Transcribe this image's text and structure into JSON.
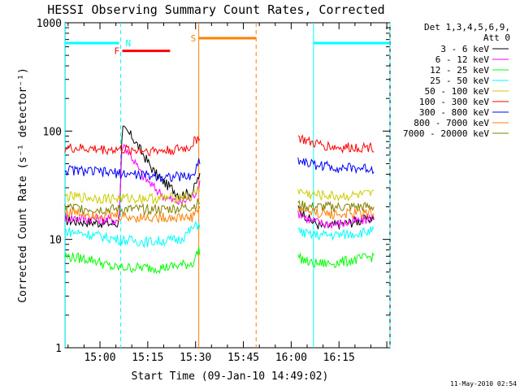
{
  "chart_data": {
    "type": "line",
    "title": "HESSI Observing Summary Count Rates, Corrected",
    "xlabel": "Start Time (09-Jan-10 14:49:02)",
    "ylabel": "Corrected Count Rate (s⁻¹ detector⁻¹)",
    "yscale": "log",
    "ylim": [
      1,
      1000
    ],
    "yticks": [
      {
        "v": 1,
        "label": "1"
      },
      {
        "v": 10,
        "label": "10"
      },
      {
        "v": 100,
        "label": "100"
      },
      {
        "v": 1000,
        "label": "1000"
      }
    ],
    "xlim": [
      "14:49:02",
      "16:31:00"
    ],
    "xticks": [
      "15:00",
      "15:15",
      "15:30",
      "15:45",
      "16:00",
      "16:15"
    ],
    "legend_header": [
      "Det 1,3,4,5,6,9,",
      "Att 0"
    ],
    "legend_placement": "right",
    "data_gap": [
      "15:31:30",
      "16:02:00"
    ],
    "series": [
      {
        "name": "3 - 6 keV",
        "color": "#000000",
        "points": [
          [
            "14:49",
            15
          ],
          [
            "15:04",
            14
          ],
          [
            "15:06",
            14
          ],
          [
            "15:07",
            105
          ],
          [
            "15:10",
            90
          ],
          [
            "15:13",
            65
          ],
          [
            "15:17",
            42
          ],
          [
            "15:21",
            32
          ],
          [
            "15:25",
            26
          ],
          [
            "15:29",
            27
          ],
          [
            "15:31",
            38
          ],
          [
            "16:02",
            20
          ],
          [
            "16:06",
            15
          ],
          [
            "16:10",
            13
          ],
          [
            "16:16",
            14
          ],
          [
            "16:22",
            15
          ],
          [
            "16:26",
            16
          ]
        ]
      },
      {
        "name": "6 - 12 keV",
        "color": "#ff00ff",
        "points": [
          [
            "14:49",
            16
          ],
          [
            "15:06",
            15
          ],
          [
            "15:07",
            78
          ],
          [
            "15:10",
            58
          ],
          [
            "15:13",
            40
          ],
          [
            "15:17",
            30
          ],
          [
            "15:21",
            24
          ],
          [
            "15:25",
            22
          ],
          [
            "15:29",
            24
          ],
          [
            "15:31",
            32
          ],
          [
            "16:02",
            18
          ],
          [
            "16:06",
            15
          ],
          [
            "16:10",
            14
          ],
          [
            "16:16",
            14
          ],
          [
            "16:22",
            15
          ],
          [
            "16:26",
            16
          ]
        ]
      },
      {
        "name": "12 - 25 keV",
        "color": "#00ff00",
        "points": [
          [
            "14:49",
            7
          ],
          [
            "14:58",
            6.5
          ],
          [
            "15:04",
            5.5
          ],
          [
            "15:10",
            5.5
          ],
          [
            "15:20",
            5.5
          ],
          [
            "15:29",
            6
          ],
          [
            "15:31",
            8
          ],
          [
            "16:02",
            7
          ],
          [
            "16:06",
            6
          ],
          [
            "16:12",
            6
          ],
          [
            "16:20",
            6.5
          ],
          [
            "16:26",
            7
          ]
        ]
      },
      {
        "name": "25 - 50 keV",
        "color": "#00ffff",
        "points": [
          [
            "14:49",
            12
          ],
          [
            "14:58",
            11
          ],
          [
            "15:06",
            10
          ],
          [
            "15:15",
            9.5
          ],
          [
            "15:25",
            10
          ],
          [
            "15:31",
            14
          ],
          [
            "16:02",
            12
          ],
          [
            "16:06",
            11
          ],
          [
            "16:15",
            11
          ],
          [
            "16:26",
            12
          ]
        ]
      },
      {
        "name": "50 - 100 keV",
        "color": "#cccc00",
        "points": [
          [
            "14:49",
            25
          ],
          [
            "15:00",
            24
          ],
          [
            "15:10",
            24
          ],
          [
            "15:20",
            24
          ],
          [
            "15:29",
            25
          ],
          [
            "15:31",
            30
          ],
          [
            "16:02",
            28
          ],
          [
            "16:06",
            26
          ],
          [
            "16:15",
            25
          ],
          [
            "16:26",
            26
          ]
        ]
      },
      {
        "name": "100 - 300 keV",
        "color": "#ff0000",
        "points": [
          [
            "14:49",
            70
          ],
          [
            "15:00",
            68
          ],
          [
            "15:10",
            67
          ],
          [
            "15:20",
            66
          ],
          [
            "15:28",
            70
          ],
          [
            "15:31",
            90
          ],
          [
            "16:02",
            88
          ],
          [
            "16:06",
            78
          ],
          [
            "16:15",
            70
          ],
          [
            "16:26",
            72
          ]
        ]
      },
      {
        "name": "300 - 800 keV",
        "color": "#0000ff",
        "points": [
          [
            "14:49",
            44
          ],
          [
            "15:00",
            42
          ],
          [
            "15:10",
            40
          ],
          [
            "15:20",
            38
          ],
          [
            "15:29",
            38
          ],
          [
            "15:31",
            52
          ],
          [
            "16:02",
            55
          ],
          [
            "16:06",
            50
          ],
          [
            "16:15",
            46
          ],
          [
            "16:26",
            45
          ]
        ]
      },
      {
        "name": "800 - 7000 keV",
        "color": "#ff8000",
        "points": [
          [
            "14:49",
            18
          ],
          [
            "15:00",
            17
          ],
          [
            "15:10",
            16
          ],
          [
            "15:20",
            16
          ],
          [
            "15:29",
            16
          ],
          [
            "15:31",
            20
          ],
          [
            "16:02",
            19
          ],
          [
            "16:06",
            18
          ],
          [
            "16:15",
            17
          ],
          [
            "16:26",
            18
          ]
        ]
      },
      {
        "name": "7000 - 20000 keV",
        "color": "#808000",
        "points": [
          [
            "14:49",
            20
          ],
          [
            "15:00",
            19
          ],
          [
            "15:10",
            19
          ],
          [
            "15:20",
            19
          ],
          [
            "15:29",
            20
          ],
          [
            "15:31",
            22
          ],
          [
            "16:02",
            21
          ],
          [
            "16:06",
            20
          ],
          [
            "16:15",
            20
          ],
          [
            "16:26",
            20
          ]
        ]
      }
    ],
    "flags": [
      {
        "label": "",
        "color": "#00ffff",
        "start": "14:49",
        "end": "15:06",
        "y": 650
      },
      {
        "label": "N",
        "color": "#00ffff",
        "start": "15:06:30",
        "end": "15:06:30",
        "y": 650
      },
      {
        "label": "",
        "color": "#00ffff",
        "start": "16:07",
        "end": "16:31",
        "y": 650
      },
      {
        "label": "F",
        "color": "#ff0000",
        "start": "15:07",
        "end": "15:22",
        "y": 550
      },
      {
        "label": "S",
        "color": "#ff8000",
        "start": "15:31",
        "end": "15:49",
        "y": 720
      }
    ],
    "vlines": [
      {
        "t": "14:49",
        "color": "#00ffff",
        "style": "solid"
      },
      {
        "t": "15:06:30",
        "color": "#00ffff",
        "style": "dashed"
      },
      {
        "t": "15:31",
        "color": "#ff8000",
        "style": "solid"
      },
      {
        "t": "15:49",
        "color": "#ff8000",
        "style": "dashed"
      },
      {
        "t": "16:07",
        "color": "#00ffff",
        "style": "solid"
      },
      {
        "t": "16:31",
        "color": "#00ffff",
        "style": "dashed"
      }
    ]
  },
  "footer": {
    "timestamp": "11-May-2010 02:54"
  }
}
